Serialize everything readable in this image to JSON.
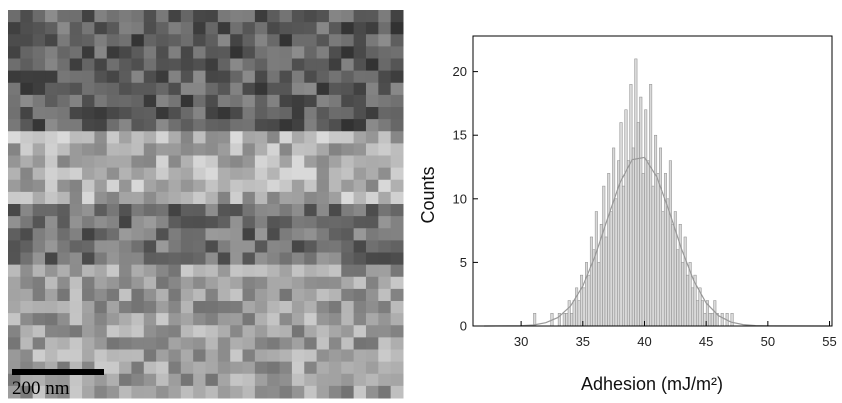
{
  "image_panel": {
    "scale_bar": "200 nm"
  },
  "chart_data": {
    "type": "histogram",
    "xlabel": "Adhesion (mJ/m²)",
    "ylabel": "Counts",
    "xlim": [
      26.1,
      55.2
    ],
    "ylim": [
      0,
      22.8
    ],
    "xticks": [
      30,
      35,
      40,
      45,
      50,
      55
    ],
    "yticks": [
      0,
      5,
      10,
      15,
      20
    ],
    "color": "#d9d9d9",
    "bins": [
      31.0,
      31.2,
      31.4,
      31.6,
      31.8,
      32.0,
      32.2,
      32.4,
      32.6,
      32.8,
      33.0,
      33.2,
      33.4,
      33.6,
      33.8,
      34.0,
      34.2,
      34.4,
      34.6,
      34.8,
      35.0,
      35.2,
      35.4,
      35.6,
      35.8,
      36.0,
      36.2,
      36.4,
      36.6,
      36.8,
      37.0,
      37.2,
      37.4,
      37.6,
      37.8,
      38.0,
      38.2,
      38.4,
      38.6,
      38.8,
      39.0,
      39.2,
      39.4,
      39.6,
      39.8,
      40.0,
      40.2,
      40.4,
      40.6,
      40.8,
      41.0,
      41.2,
      41.4,
      41.6,
      41.8,
      42.0,
      42.2,
      42.4,
      42.6,
      42.8,
      43.0,
      43.2,
      43.4,
      43.6,
      43.8,
      44.0,
      44.2,
      44.4,
      44.6,
      44.8,
      45.0,
      45.2,
      45.4,
      45.6,
      45.8,
      46.0,
      46.2,
      46.4,
      46.6,
      46.8,
      47.0,
      47.2,
      47.4,
      47.6
    ],
    "values": [
      1,
      0,
      0,
      0,
      0,
      0,
      0,
      1,
      0,
      0,
      1,
      0,
      1,
      1,
      2,
      1,
      2,
      3,
      2,
      4,
      3,
      5,
      4,
      7,
      6,
      9,
      5,
      8,
      11,
      7,
      12,
      9,
      14,
      10,
      13,
      16,
      11,
      17,
      13,
      19,
      14,
      21,
      16,
      18,
      12,
      17,
      13,
      19,
      11,
      15,
      12,
      14,
      9,
      12,
      10,
      13,
      8,
      9,
      6,
      8,
      5,
      7,
      4,
      5,
      3,
      4,
      2,
      3,
      2,
      1,
      2,
      1,
      1,
      2,
      1,
      0,
      1,
      0,
      1,
      0,
      1,
      0,
      0
    ],
    "fit": {
      "color": "#999999",
      "x": [
        27,
        30,
        31,
        32,
        33,
        34,
        35,
        36,
        37,
        38,
        39,
        40,
        41,
        42,
        43,
        44,
        45,
        46,
        47,
        48,
        49,
        50,
        55
      ],
      "y": [
        0,
        0.02,
        0.08,
        0.26,
        0.67,
        1.56,
        3.14,
        5.51,
        8.43,
        11.24,
        13.08,
        13.25,
        11.72,
        9.03,
        6.06,
        3.55,
        1.81,
        0.81,
        0.31,
        0.11,
        0.03,
        0.01,
        0
      ]
    }
  }
}
